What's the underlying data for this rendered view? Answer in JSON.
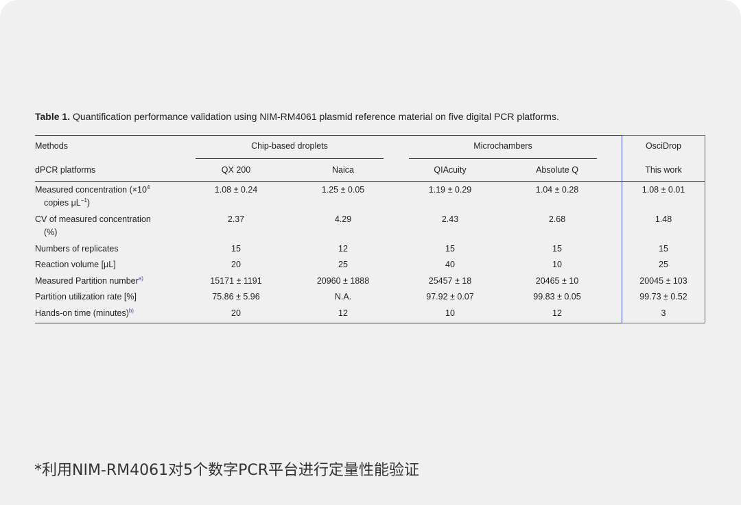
{
  "caption": {
    "label": "Table 1.",
    "text": "Quantification performance validation using NIM-RM4061 plasmid reference material on five digital PCR platforms."
  },
  "header": {
    "methods_label": "Methods",
    "group1": "Chip-based droplets",
    "group2": "Microchambers",
    "group3": "OsciDrop",
    "platforms_label": "dPCR platforms",
    "platforms": [
      "QX 200",
      "Naica",
      "QIAcuity",
      "Absolute Q",
      "This work"
    ]
  },
  "rows": [
    {
      "label_line1": "Measured concentration (×10",
      "label_sup": "4",
      "label_line2_pre": "copies μL",
      "label_line2_sup": "−1",
      "label_line2_post": ")",
      "values": [
        "1.08 ± 0.24",
        "1.25 ± 0.05",
        "1.19 ± 0.29",
        "1.04 ± 0.28",
        "1.08 ± 0.01"
      ]
    },
    {
      "label_line1": "CV of measured concentration",
      "label_line2": "(%)",
      "values": [
        "2.37",
        "4.29",
        "2.43",
        "2.68",
        "1.48"
      ]
    },
    {
      "label": "Numbers of replicates",
      "values": [
        "15",
        "12",
        "15",
        "15",
        "15"
      ]
    },
    {
      "label": "Reaction volume [μL]",
      "values": [
        "20",
        "25",
        "40",
        "10",
        "25"
      ]
    },
    {
      "label": "Measured Partition number",
      "footnote": "a)",
      "values": [
        "15171 ± 1191",
        "20960 ± 1888",
        "25457 ± 18",
        "20465 ± 10",
        "20045 ± 103"
      ]
    },
    {
      "label": "Partition utilization rate [%]",
      "values": [
        "75.86 ± 5.96",
        "N.A.",
        "97.92 ± 0.07",
        "99.83 ± 0.05",
        "99.73 ± 0.52"
      ]
    },
    {
      "label": "Hands-on time (minutes)",
      "footnote": "b)",
      "values": [
        "20",
        "12",
        "10",
        "12",
        "3"
      ]
    }
  ],
  "footer": {
    "text": "*利用NIM-RM4061对5个数字PCR平台进行定量性能验证"
  },
  "colors": {
    "highlight_border": "#4a55d6",
    "background": "#f0f0f0"
  }
}
